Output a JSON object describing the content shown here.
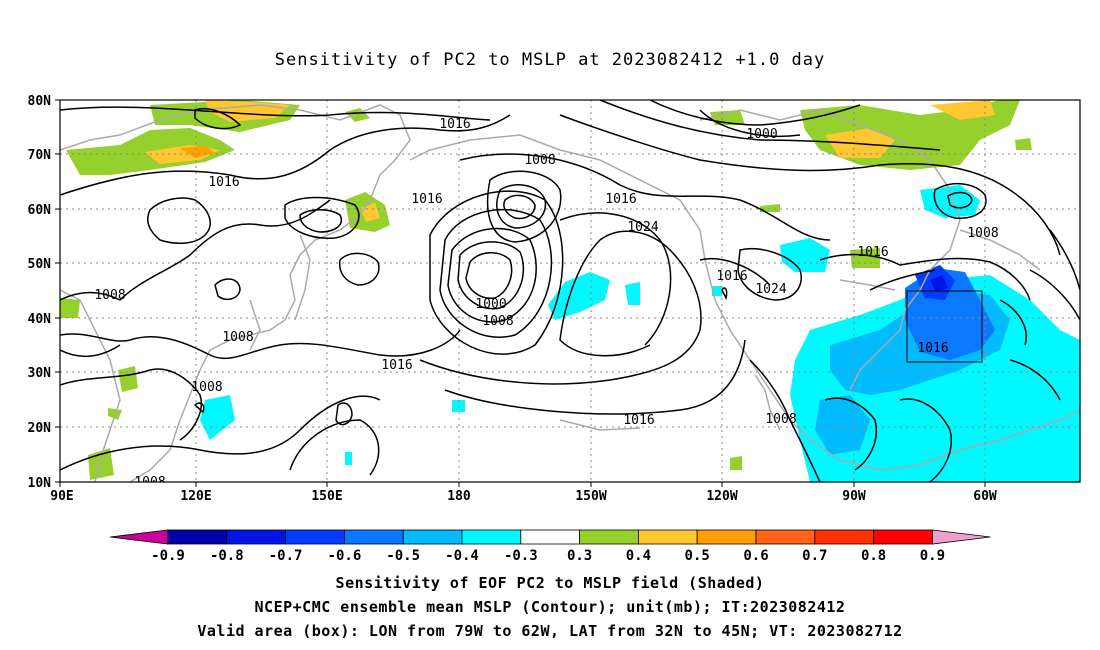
{
  "title": "Sensitivity of PC2 to MSLP at 2023082412 +1.0 day",
  "lat_labels": [
    "80N",
    "70N",
    "60N",
    "50N",
    "40N",
    "30N",
    "20N",
    "10N"
  ],
  "lon_labels": [
    "90E",
    "120E",
    "150E",
    "180",
    "150W",
    "120W",
    "90W",
    "60W"
  ],
  "contour_labels": [
    {
      "text": "1016"
    },
    {
      "text": "1000"
    },
    {
      "text": "1008"
    },
    {
      "text": "1016"
    },
    {
      "text": "1016"
    },
    {
      "text": "1008"
    },
    {
      "text": "1016"
    },
    {
      "text": "1024"
    },
    {
      "text": "1000"
    },
    {
      "text": "1008"
    },
    {
      "text": "1016"
    },
    {
      "text": "1016"
    },
    {
      "text": "1024"
    },
    {
      "text": "1016"
    },
    {
      "text": "1008"
    },
    {
      "text": "1008"
    },
    {
      "text": "1008"
    },
    {
      "text": "1016"
    },
    {
      "text": "1008"
    },
    {
      "text": "1016"
    },
    {
      "text": "1008"
    }
  ],
  "colorbar": {
    "labels": [
      "-0.9",
      "-0.8",
      "-0.7",
      "-0.6",
      "-0.5",
      "-0.4",
      "-0.3",
      "0.3",
      "0.4",
      "0.5",
      "0.6",
      "0.7",
      "0.8",
      "0.9"
    ],
    "colors": [
      "#cc00a0",
      "#0000a8",
      "#0014e6",
      "#003cff",
      "#0a78ff",
      "#00bcff",
      "#00f8ff",
      "#ffffff",
      "#96d02c",
      "#ffc832",
      "#ffa000",
      "#ff6418",
      "#ff3200",
      "#ff0000",
      "#f0a0d0"
    ]
  },
  "valid_box": {
    "lon_from": "79W",
    "lon_to": "62W",
    "lat_from": "32N",
    "lat_to": "45N"
  },
  "captions": {
    "line1": "Sensitivity of EOF PC2 to MSLP field (Shaded)",
    "line2": "NCEP+CMC ensemble mean MSLP (Contour); unit(mb); IT:2023082412",
    "line3": "Valid area (box): LON from 79W to 62W, LAT from 32N to 45N; VT: 2023082712"
  }
}
